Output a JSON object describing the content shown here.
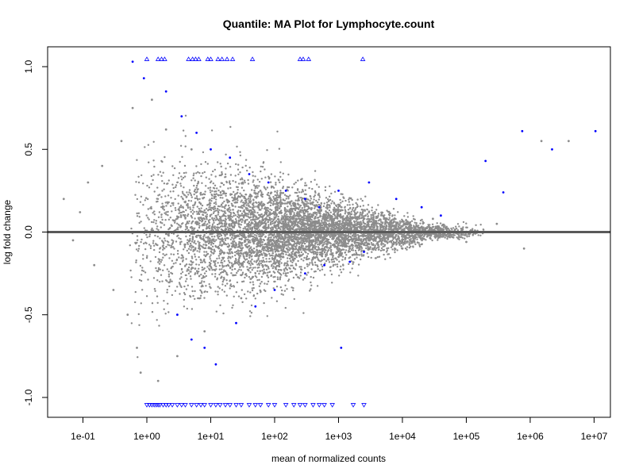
{
  "chart_data": {
    "type": "scatter",
    "title": "Quantile: MA Plot for Lymphocyte.count",
    "xlabel": "mean of normalized counts",
    "ylabel": "log fold change",
    "x_scale": "log10",
    "xlim": [
      0.028,
      18000000
    ],
    "ylim": [
      -1.12,
      1.12
    ],
    "x_ticks": [
      0.1,
      1,
      10,
      100,
      1000,
      10000,
      100000,
      1000000,
      10000000
    ],
    "x_tick_labels": [
      "1e-01",
      "1e+00",
      "1e+01",
      "1e+02",
      "1e+03",
      "1e+04",
      "1e+05",
      "1e+06",
      "1e+07"
    ],
    "y_ticks": [
      -1.0,
      -0.5,
      0.0,
      0.5,
      1.0
    ],
    "y_tick_labels": [
      "-1.0",
      "-0.5",
      "0.0",
      "0.5",
      "1.0"
    ],
    "reference_line_y": 0,
    "grid": false,
    "legend": "none",
    "colors": {
      "nonsignificant": "#8c8c8c",
      "significant": "#0000ff",
      "reference_line": "#595959",
      "frame": "#000000"
    },
    "series": [
      {
        "marker": "point",
        "color": "#8c8c8c",
        "points": [
          [
            0.05,
            0.2
          ],
          [
            0.07,
            -0.05
          ],
          [
            0.09,
            0.12
          ],
          [
            0.12,
            0.3
          ],
          [
            0.15,
            -0.2
          ],
          [
            0.2,
            0.4
          ],
          [
            0.3,
            -0.35
          ],
          [
            0.4,
            0.55
          ],
          [
            0.5,
            -0.5
          ],
          [
            0.6,
            0.75
          ],
          [
            0.7,
            -0.7
          ],
          [
            0.8,
            -0.85
          ],
          [
            1.2,
            0.8
          ],
          [
            1.5,
            -0.9
          ],
          [
            2.0,
            0.62
          ],
          [
            3.0,
            -0.75
          ],
          [
            5.0,
            0.5
          ],
          [
            8.0,
            -0.6
          ],
          [
            15,
            0.35
          ],
          [
            30,
            -0.4
          ],
          [
            60,
            0.25
          ],
          [
            150,
            -0.25
          ],
          [
            400,
            0.18
          ],
          [
            1000,
            -0.15
          ],
          [
            3000,
            0.12
          ],
          [
            10000,
            -0.1
          ],
          [
            30000,
            0.08
          ],
          [
            100000,
            -0.06
          ],
          [
            300000,
            0.05
          ],
          [
            800000,
            -0.1
          ],
          [
            1500000,
            0.55
          ],
          [
            4000000,
            0.55
          ]
        ]
      },
      {
        "marker": "point",
        "color": "#0000ff",
        "points": [
          [
            0.6,
            1.03
          ],
          [
            0.9,
            0.93
          ],
          [
            2.0,
            0.85
          ],
          [
            3.5,
            0.7
          ],
          [
            6.0,
            0.6
          ],
          [
            10,
            0.5
          ],
          [
            20,
            0.45
          ],
          [
            40,
            0.35
          ],
          [
            80,
            0.3
          ],
          [
            150,
            0.25
          ],
          [
            300,
            0.2
          ],
          [
            500,
            0.15
          ],
          [
            1000,
            0.25
          ],
          [
            3000,
            0.3
          ],
          [
            8000,
            0.2
          ],
          [
            20000,
            0.15
          ],
          [
            40000,
            0.1
          ],
          [
            200000,
            0.43
          ],
          [
            380000,
            0.24
          ],
          [
            750000,
            0.61
          ],
          [
            2200000,
            0.5
          ],
          [
            10500000,
            0.61
          ],
          [
            3.0,
            -0.5
          ],
          [
            5.0,
            -0.65
          ],
          [
            8.0,
            -0.7
          ],
          [
            12,
            -0.8
          ],
          [
            25,
            -0.55
          ],
          [
            50,
            -0.45
          ],
          [
            100,
            -0.35
          ],
          [
            300,
            -0.25
          ],
          [
            600,
            -0.2
          ],
          [
            1100,
            -0.7
          ],
          [
            1500,
            -0.18
          ],
          [
            2500,
            -0.12
          ]
        ]
      },
      {
        "marker": "triangle-up",
        "color": "#0000ff",
        "points": [
          [
            1.0,
            1.045
          ],
          [
            1.5,
            1.045
          ],
          [
            1.7,
            1.045
          ],
          [
            1.9,
            1.045
          ],
          [
            4.5,
            1.045
          ],
          [
            5.2,
            1.045
          ],
          [
            5.8,
            1.045
          ],
          [
            6.5,
            1.045
          ],
          [
            9.0,
            1.045
          ],
          [
            10,
            1.045
          ],
          [
            13,
            1.045
          ],
          [
            15,
            1.045
          ],
          [
            18,
            1.045
          ],
          [
            22,
            1.045
          ],
          [
            45,
            1.045
          ],
          [
            250,
            1.045
          ],
          [
            280,
            1.045
          ],
          [
            340,
            1.045
          ],
          [
            2400,
            1.045
          ]
        ]
      },
      {
        "marker": "triangle-down",
        "color": "#0000ff",
        "points": [
          [
            1.0,
            -1.045
          ],
          [
            1.1,
            -1.045
          ],
          [
            1.2,
            -1.045
          ],
          [
            1.3,
            -1.045
          ],
          [
            1.4,
            -1.045
          ],
          [
            1.5,
            -1.045
          ],
          [
            1.6,
            -1.045
          ],
          [
            1.8,
            -1.045
          ],
          [
            2.0,
            -1.045
          ],
          [
            2.2,
            -1.045
          ],
          [
            2.5,
            -1.045
          ],
          [
            3.0,
            -1.045
          ],
          [
            3.5,
            -1.045
          ],
          [
            4.0,
            -1.045
          ],
          [
            5.0,
            -1.045
          ],
          [
            6.0,
            -1.045
          ],
          [
            7.0,
            -1.045
          ],
          [
            8.0,
            -1.045
          ],
          [
            10,
            -1.045
          ],
          [
            12,
            -1.045
          ],
          [
            14,
            -1.045
          ],
          [
            17,
            -1.045
          ],
          [
            20,
            -1.045
          ],
          [
            25,
            -1.045
          ],
          [
            30,
            -1.045
          ],
          [
            40,
            -1.045
          ],
          [
            50,
            -1.045
          ],
          [
            60,
            -1.045
          ],
          [
            80,
            -1.045
          ],
          [
            100,
            -1.045
          ],
          [
            150,
            -1.045
          ],
          [
            200,
            -1.045
          ],
          [
            250,
            -1.045
          ],
          [
            300,
            -1.045
          ],
          [
            400,
            -1.045
          ],
          [
            500,
            -1.045
          ],
          [
            600,
            -1.045
          ],
          [
            800,
            -1.045
          ],
          [
            1700,
            -1.045
          ],
          [
            2500,
            -1.045
          ]
        ]
      }
    ]
  }
}
